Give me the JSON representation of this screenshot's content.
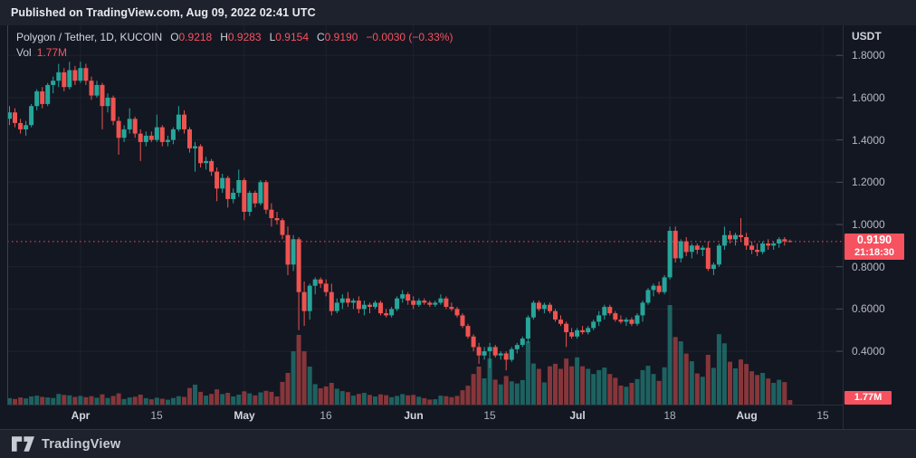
{
  "published_bar": {
    "text": "Published on TradingView.com, Aug 09, 2022 02:41 UTC"
  },
  "legend": {
    "symbol": "Polygon / Tether, 1D, KUCOIN",
    "ohlc": [
      {
        "label": "O",
        "value": "0.9218"
      },
      {
        "label": "H",
        "value": "0.9283"
      },
      {
        "label": "L",
        "value": "0.9154"
      },
      {
        "label": "C",
        "value": "0.9190"
      }
    ],
    "change": "−0.0030 (−0.33%)",
    "vol_label": "Vol",
    "vol_value": "1.77M"
  },
  "price_scale": {
    "currency": "USDT",
    "ticks": [
      {
        "label": "1.8000",
        "value": 1.8
      },
      {
        "label": "1.6000",
        "value": 1.6
      },
      {
        "label": "1.4000",
        "value": 1.4
      },
      {
        "label": "1.2000",
        "value": 1.2
      },
      {
        "label": "1.0000",
        "value": 1.0
      },
      {
        "label": "0.8000",
        "value": 0.8
      },
      {
        "label": "0.6000",
        "value": 0.6
      },
      {
        "label": "0.4000",
        "value": 0.4
      }
    ]
  },
  "time_axis": {
    "ticks": [
      {
        "label": "Apr",
        "index": 13,
        "type": "month"
      },
      {
        "label": "15",
        "index": 27,
        "type": "day"
      },
      {
        "label": "May",
        "index": 43,
        "type": "month"
      },
      {
        "label": "16",
        "index": 58,
        "type": "day"
      },
      {
        "label": "Jun",
        "index": 74,
        "type": "month"
      },
      {
        "label": "15",
        "index": 88,
        "type": "day"
      },
      {
        "label": "Jul",
        "index": 104,
        "type": "month"
      },
      {
        "label": "18",
        "index": 121,
        "type": "day"
      },
      {
        "label": "Aug",
        "index": 135,
        "type": "month"
      },
      {
        "label": "15",
        "index": 149,
        "type": "day"
      }
    ]
  },
  "price_badge": {
    "price": "0.9190",
    "countdown": "21:18:30"
  },
  "volume_badge": {
    "value": "1.77M"
  },
  "footer": {
    "brand": "TradingView"
  },
  "colors": {
    "up": "#26a69a",
    "down": "#ef5350",
    "vol_up": "rgba(38,166,154,0.52)",
    "vol_down": "rgba(239,83,80,0.52)",
    "accent": "#f7525f",
    "grid": "#1e222d",
    "background": "#131722",
    "strip": "#1e222d"
  },
  "chart_data": {
    "type": "candlestick",
    "title": "Polygon / Tether, 1D, KUCOIN",
    "pair": "MATIC/USDT",
    "exchange": "KUCOIN",
    "interval": "1D",
    "start_date": "2022-03-19",
    "end_date": "2022-08-09",
    "spacing": "1 day per candle, sequential",
    "current_price": 0.919,
    "last_ohlc": {
      "open": 0.9218,
      "high": 0.9283,
      "low": 0.9154,
      "close": 0.919,
      "change": -0.003,
      "change_pct": -0.33
    },
    "price_axis_ticks": [
      1.8,
      1.6,
      1.4,
      1.2,
      1.0,
      0.8,
      0.6,
      0.4
    ],
    "visible_price_range": [
      0.15,
      1.94
    ],
    "volume_unit": "millions (estimated; last bar labeled 1.77M)",
    "legend_position": "top-left",
    "grid": true,
    "candles_format": [
      "open",
      "high",
      "low",
      "close",
      "volume_M"
    ],
    "candles": [
      [
        1.5,
        1.56,
        1.47,
        1.53,
        2.5
      ],
      [
        1.53,
        1.55,
        1.46,
        1.48,
        2.2
      ],
      [
        1.48,
        1.5,
        1.43,
        1.45,
        2.8
      ],
      [
        1.45,
        1.49,
        1.42,
        1.47,
        2.4
      ],
      [
        1.47,
        1.57,
        1.46,
        1.56,
        3.2
      ],
      [
        1.56,
        1.64,
        1.54,
        1.63,
        3.5
      ],
      [
        1.63,
        1.65,
        1.55,
        1.57,
        3.0
      ],
      [
        1.57,
        1.67,
        1.56,
        1.66,
        2.8
      ],
      [
        1.66,
        1.7,
        1.62,
        1.68,
        2.6
      ],
      [
        1.68,
        1.76,
        1.65,
        1.72,
        4.2
      ],
      [
        1.72,
        1.74,
        1.63,
        1.65,
        3.8
      ],
      [
        1.65,
        1.77,
        1.64,
        1.73,
        3.6
      ],
      [
        1.73,
        1.75,
        1.66,
        1.68,
        3.0
      ],
      [
        1.68,
        1.77,
        1.67,
        1.74,
        3.4
      ],
      [
        1.74,
        1.76,
        1.66,
        1.68,
        2.9
      ],
      [
        1.68,
        1.7,
        1.59,
        1.61,
        3.3
      ],
      [
        1.61,
        1.68,
        1.6,
        1.66,
        2.7
      ],
      [
        1.66,
        1.67,
        1.45,
        1.56,
        4.0
      ],
      [
        1.56,
        1.62,
        1.53,
        1.6,
        2.6
      ],
      [
        1.6,
        1.61,
        1.47,
        1.49,
        3.4
      ],
      [
        1.49,
        1.51,
        1.33,
        1.41,
        4.4
      ],
      [
        1.41,
        1.47,
        1.39,
        1.45,
        2.2
      ],
      [
        1.45,
        1.55,
        1.43,
        1.5,
        2.8
      ],
      [
        1.5,
        1.51,
        1.41,
        1.43,
        3.1
      ],
      [
        1.43,
        1.45,
        1.3,
        1.39,
        3.9
      ],
      [
        1.39,
        1.44,
        1.37,
        1.42,
        2.5
      ],
      [
        1.42,
        1.44,
        1.39,
        1.4,
        2.1
      ],
      [
        1.4,
        1.52,
        1.39,
        1.46,
        2.7
      ],
      [
        1.46,
        1.47,
        1.37,
        1.39,
        2.3
      ],
      [
        1.39,
        1.42,
        1.37,
        1.4,
        1.9
      ],
      [
        1.4,
        1.46,
        1.38,
        1.45,
        2.6
      ],
      [
        1.45,
        1.56,
        1.44,
        1.52,
        3.3
      ],
      [
        1.52,
        1.54,
        1.43,
        1.45,
        3.0
      ],
      [
        1.45,
        1.46,
        1.34,
        1.36,
        6.5
      ],
      [
        1.36,
        1.39,
        1.25,
        1.37,
        7.8
      ],
      [
        1.37,
        1.38,
        1.27,
        1.29,
        5.0
      ],
      [
        1.29,
        1.32,
        1.26,
        1.3,
        3.5
      ],
      [
        1.3,
        1.31,
        1.23,
        1.25,
        4.2
      ],
      [
        1.25,
        1.27,
        1.11,
        1.17,
        6.0
      ],
      [
        1.17,
        1.24,
        1.15,
        1.22,
        4.1
      ],
      [
        1.22,
        1.23,
        1.08,
        1.12,
        4.6
      ],
      [
        1.12,
        1.17,
        1.1,
        1.15,
        3.2
      ],
      [
        1.15,
        1.26,
        1.13,
        1.21,
        3.9
      ],
      [
        1.21,
        1.22,
        1.02,
        1.06,
        5.2
      ],
      [
        1.06,
        1.16,
        1.04,
        1.15,
        4.4
      ],
      [
        1.15,
        1.16,
        1.08,
        1.1,
        3.6
      ],
      [
        1.1,
        1.21,
        1.09,
        1.2,
        4.8
      ],
      [
        1.2,
        1.21,
        1.05,
        1.07,
        5.4
      ],
      [
        1.07,
        1.1,
        0.99,
        1.03,
        5.0
      ],
      [
        1.03,
        1.06,
        1.0,
        1.02,
        3.2
      ],
      [
        1.02,
        1.03,
        0.93,
        0.95,
        8.9
      ],
      [
        0.95,
        0.99,
        0.76,
        0.81,
        12.4
      ],
      [
        0.81,
        0.95,
        0.78,
        0.93,
        20.9
      ],
      [
        0.93,
        0.94,
        0.5,
        0.68,
        27.3
      ],
      [
        0.68,
        0.73,
        0.52,
        0.59,
        20.9
      ],
      [
        0.59,
        0.72,
        0.55,
        0.71,
        14.9
      ],
      [
        0.71,
        0.75,
        0.67,
        0.74,
        8.0
      ],
      [
        0.74,
        0.75,
        0.7,
        0.72,
        6.4
      ],
      [
        0.72,
        0.74,
        0.66,
        0.68,
        7.1
      ],
      [
        0.68,
        0.72,
        0.57,
        0.59,
        8.5
      ],
      [
        0.59,
        0.65,
        0.58,
        0.63,
        6.2
      ],
      [
        0.63,
        0.67,
        0.6,
        0.65,
        5.3
      ],
      [
        0.65,
        0.68,
        0.61,
        0.63,
        4.9
      ],
      [
        0.63,
        0.65,
        0.6,
        0.64,
        3.5
      ],
      [
        0.64,
        0.66,
        0.58,
        0.6,
        4.2
      ],
      [
        0.6,
        0.64,
        0.57,
        0.62,
        4.6
      ],
      [
        0.62,
        0.63,
        0.58,
        0.61,
        3.8
      ],
      [
        0.61,
        0.64,
        0.6,
        0.63,
        3.2
      ],
      [
        0.63,
        0.64,
        0.57,
        0.58,
        4.0
      ],
      [
        0.58,
        0.6,
        0.56,
        0.57,
        3.7
      ],
      [
        0.57,
        0.61,
        0.56,
        0.6,
        2.9
      ],
      [
        0.6,
        0.66,
        0.59,
        0.65,
        3.4
      ],
      [
        0.65,
        0.69,
        0.63,
        0.67,
        4.1
      ],
      [
        0.67,
        0.68,
        0.62,
        0.64,
        3.6
      ],
      [
        0.64,
        0.66,
        0.6,
        0.62,
        3.8
      ],
      [
        0.62,
        0.65,
        0.61,
        0.64,
        3.1
      ],
      [
        0.64,
        0.65,
        0.62,
        0.63,
        2.5
      ],
      [
        0.63,
        0.64,
        0.61,
        0.62,
        2.0
      ],
      [
        0.62,
        0.64,
        0.61,
        0.63,
        2.1
      ],
      [
        0.63,
        0.67,
        0.62,
        0.65,
        3.5
      ],
      [
        0.65,
        0.66,
        0.6,
        0.61,
        3.3
      ],
      [
        0.61,
        0.63,
        0.59,
        0.6,
        2.9
      ],
      [
        0.6,
        0.61,
        0.56,
        0.57,
        3.4
      ],
      [
        0.57,
        0.58,
        0.51,
        0.52,
        5.6
      ],
      [
        0.52,
        0.53,
        0.46,
        0.47,
        7.4
      ],
      [
        0.47,
        0.48,
        0.4,
        0.42,
        12.0
      ],
      [
        0.42,
        0.44,
        0.34,
        0.38,
        14.9
      ],
      [
        0.38,
        0.42,
        0.36,
        0.4,
        10.3
      ],
      [
        0.4,
        0.44,
        0.32,
        0.42,
        18.0
      ],
      [
        0.42,
        0.43,
        0.37,
        0.38,
        9.8
      ],
      [
        0.38,
        0.4,
        0.36,
        0.39,
        7.9
      ],
      [
        0.39,
        0.4,
        0.31,
        0.36,
        11.2
      ],
      [
        0.36,
        0.42,
        0.35,
        0.41,
        9.1
      ],
      [
        0.41,
        0.44,
        0.39,
        0.43,
        8.3
      ],
      [
        0.43,
        0.47,
        0.42,
        0.46,
        9.6
      ],
      [
        0.46,
        0.57,
        0.44,
        0.56,
        24.8
      ],
      [
        0.56,
        0.64,
        0.55,
        0.63,
        16.1
      ],
      [
        0.63,
        0.64,
        0.59,
        0.6,
        14.0
      ],
      [
        0.6,
        0.63,
        0.58,
        0.62,
        8.7
      ],
      [
        0.62,
        0.63,
        0.58,
        0.59,
        15.0
      ],
      [
        0.59,
        0.6,
        0.54,
        0.55,
        16.0
      ],
      [
        0.55,
        0.57,
        0.52,
        0.53,
        14.0
      ],
      [
        0.53,
        0.54,
        0.42,
        0.49,
        18.0
      ],
      [
        0.49,
        0.51,
        0.46,
        0.47,
        15.0
      ],
      [
        0.47,
        0.51,
        0.46,
        0.5,
        18.5
      ],
      [
        0.5,
        0.52,
        0.48,
        0.49,
        15.0
      ],
      [
        0.49,
        0.52,
        0.48,
        0.51,
        14.0
      ],
      [
        0.51,
        0.55,
        0.5,
        0.54,
        12.0
      ],
      [
        0.54,
        0.59,
        0.52,
        0.57,
        13.5
      ],
      [
        0.57,
        0.62,
        0.55,
        0.61,
        14.5
      ],
      [
        0.61,
        0.62,
        0.57,
        0.58,
        12.0
      ],
      [
        0.58,
        0.59,
        0.54,
        0.55,
        10.5
      ],
      [
        0.55,
        0.57,
        0.53,
        0.54,
        7.5
      ],
      [
        0.54,
        0.56,
        0.52,
        0.55,
        7.0
      ],
      [
        0.55,
        0.56,
        0.52,
        0.53,
        8.5
      ],
      [
        0.53,
        0.58,
        0.52,
        0.57,
        10.0
      ],
      [
        0.57,
        0.64,
        0.54,
        0.63,
        13.5
      ],
      [
        0.63,
        0.7,
        0.62,
        0.69,
        15.2
      ],
      [
        0.69,
        0.72,
        0.66,
        0.71,
        12.0
      ],
      [
        0.71,
        0.73,
        0.67,
        0.68,
        9.3
      ],
      [
        0.68,
        0.76,
        0.67,
        0.75,
        14.6
      ],
      [
        0.75,
        0.99,
        0.74,
        0.97,
        39.0
      ],
      [
        0.97,
        0.99,
        0.82,
        0.84,
        26.5
      ],
      [
        0.84,
        0.93,
        0.82,
        0.92,
        24.8
      ],
      [
        0.92,
        0.94,
        0.85,
        0.87,
        20.0
      ],
      [
        0.87,
        0.91,
        0.84,
        0.9,
        17.0
      ],
      [
        0.9,
        0.91,
        0.86,
        0.88,
        12.2
      ],
      [
        0.88,
        0.9,
        0.85,
        0.89,
        10.9
      ],
      [
        0.89,
        0.92,
        0.78,
        0.79,
        19.5
      ],
      [
        0.79,
        0.82,
        0.76,
        0.81,
        14.4
      ],
      [
        0.81,
        0.91,
        0.8,
        0.9,
        27.6
      ],
      [
        0.9,
        0.99,
        0.88,
        0.95,
        24.0
      ],
      [
        0.95,
        0.97,
        0.91,
        0.93,
        16.8
      ],
      [
        0.93,
        0.96,
        0.9,
        0.95,
        14.2
      ],
      [
        0.95,
        1.03,
        0.92,
        0.94,
        17.7
      ],
      [
        0.94,
        0.96,
        0.88,
        0.9,
        15.9
      ],
      [
        0.9,
        0.92,
        0.86,
        0.88,
        13.1
      ],
      [
        0.88,
        0.91,
        0.85,
        0.87,
        11.6
      ],
      [
        0.87,
        0.92,
        0.86,
        0.91,
        12.4
      ],
      [
        0.91,
        0.93,
        0.88,
        0.9,
        10.2
      ],
      [
        0.9,
        0.92,
        0.88,
        0.91,
        8.5
      ],
      [
        0.91,
        0.94,
        0.89,
        0.93,
        9.7
      ],
      [
        0.93,
        0.94,
        0.9,
        0.92,
        8.8
      ],
      [
        0.9218,
        0.9283,
        0.9154,
        0.919,
        1.77
      ]
    ]
  }
}
